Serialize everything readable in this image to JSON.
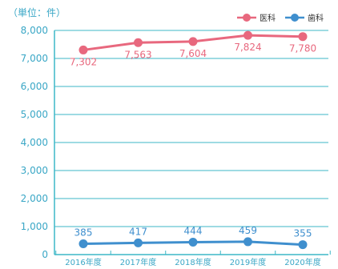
{
  "chart_data": {
    "type": "line",
    "unit_label": "（単位：件）",
    "categories": [
      "2016年度",
      "2017年度",
      "2018年度",
      "2019年度",
      "2020年度"
    ],
    "y_ticks": [
      "0",
      "1,000",
      "2,000",
      "3,000",
      "4,000",
      "5,000",
      "6,000",
      "7,000",
      "8,000"
    ],
    "ylim": [
      0,
      8000
    ],
    "grid": true,
    "legend_position": "top-right",
    "series": [
      {
        "name": "医科",
        "values": [
          7302,
          7563,
          7604,
          7824,
          7780
        ],
        "labels": [
          "7,302",
          "7,563",
          "7,604",
          "7,824",
          "7,780"
        ],
        "label_position": "below",
        "color": "#e8687e"
      },
      {
        "name": "歯科",
        "values": [
          385,
          417,
          444,
          459,
          355
        ],
        "labels": [
          "385",
          "417",
          "444",
          "459",
          "355"
        ],
        "label_position": "above",
        "color": "#3f8fce"
      }
    ],
    "grid_color": "#3db7c7",
    "axis_text_color": "#3aa7c6"
  }
}
